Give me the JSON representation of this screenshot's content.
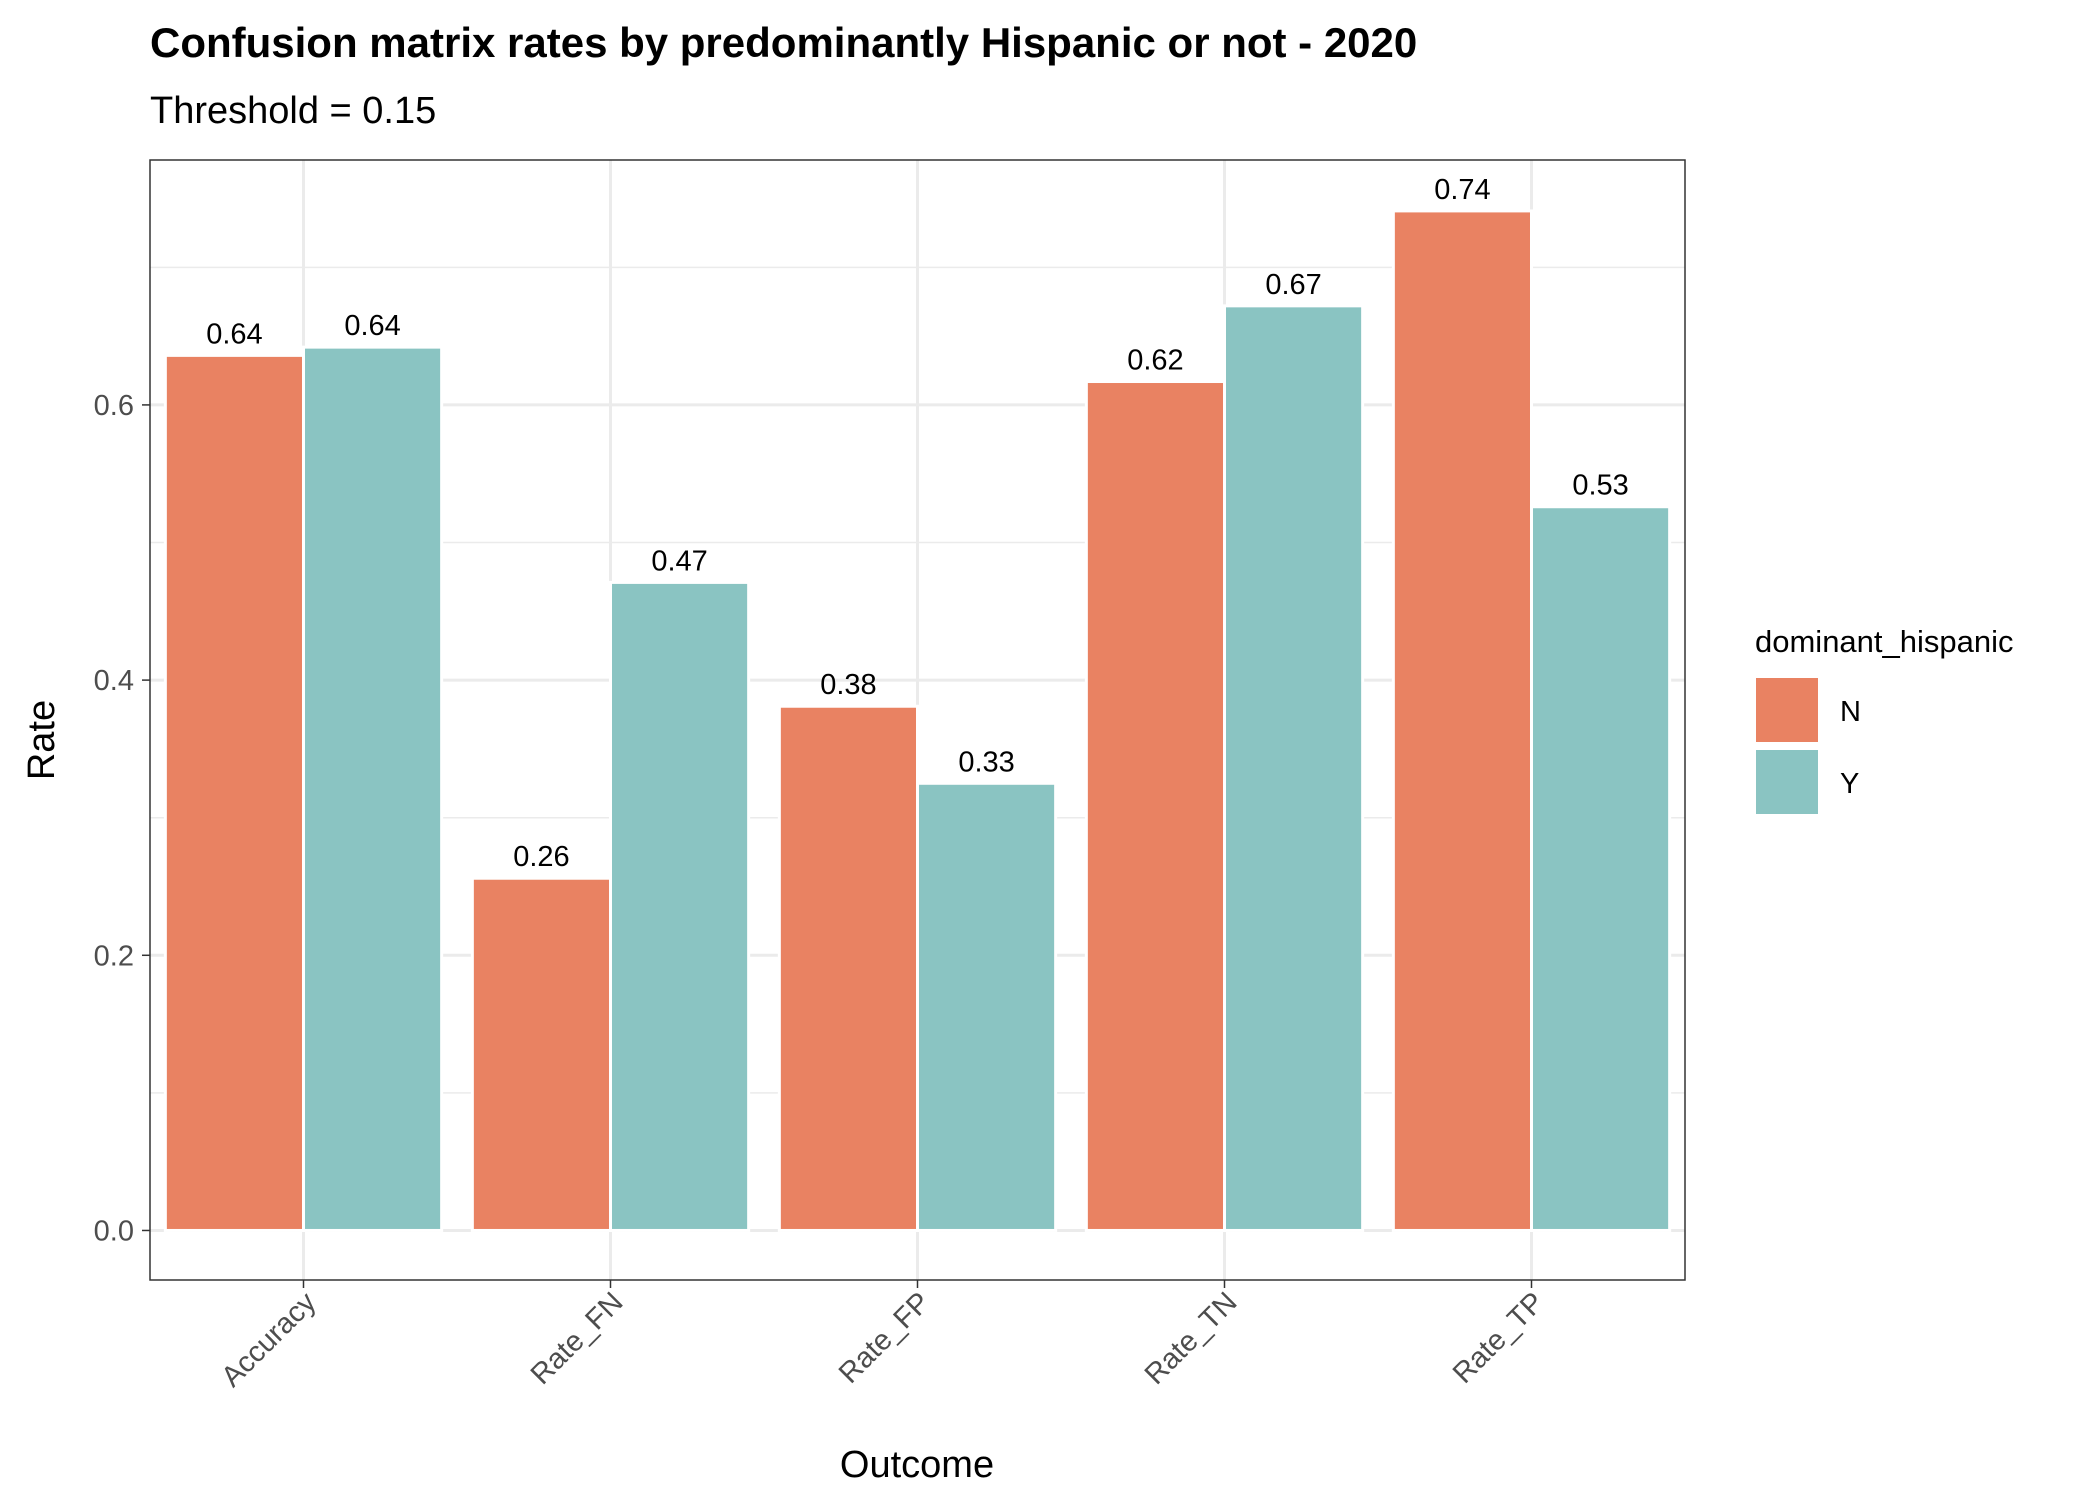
{
  "chart_data": {
    "type": "bar",
    "title": "Confusion matrix rates by predominantly Hispanic or not - 2020",
    "subtitle": "Threshold = 0.15",
    "xlabel": "Outcome",
    "ylabel": "Rate",
    "categories": [
      "Accuracy",
      "Rate_FN",
      "Rate_FP",
      "Rate_TN",
      "Rate_TP"
    ],
    "series": [
      {
        "name": "N",
        "color": "#E98262",
        "values": [
          0.636,
          0.256,
          0.381,
          0.617,
          0.741
        ],
        "labels": [
          "0.64",
          "0.26",
          "0.38",
          "0.62",
          "0.74"
        ]
      },
      {
        "name": "Y",
        "color": "#8AC4C2",
        "values": [
          0.642,
          0.471,
          0.325,
          0.672,
          0.526
        ],
        "labels": [
          "0.64",
          "0.47",
          "0.33",
          "0.67",
          "0.53"
        ]
      }
    ],
    "ylim": [
      -0.036,
      0.778
    ],
    "yticks": [
      0.0,
      0.2,
      0.4,
      0.6
    ],
    "ytick_labels": [
      "0.0",
      "0.2",
      "0.4",
      "0.6"
    ],
    "grid": true,
    "legend": {
      "title": "dominant_hispanic",
      "position": "right"
    }
  }
}
